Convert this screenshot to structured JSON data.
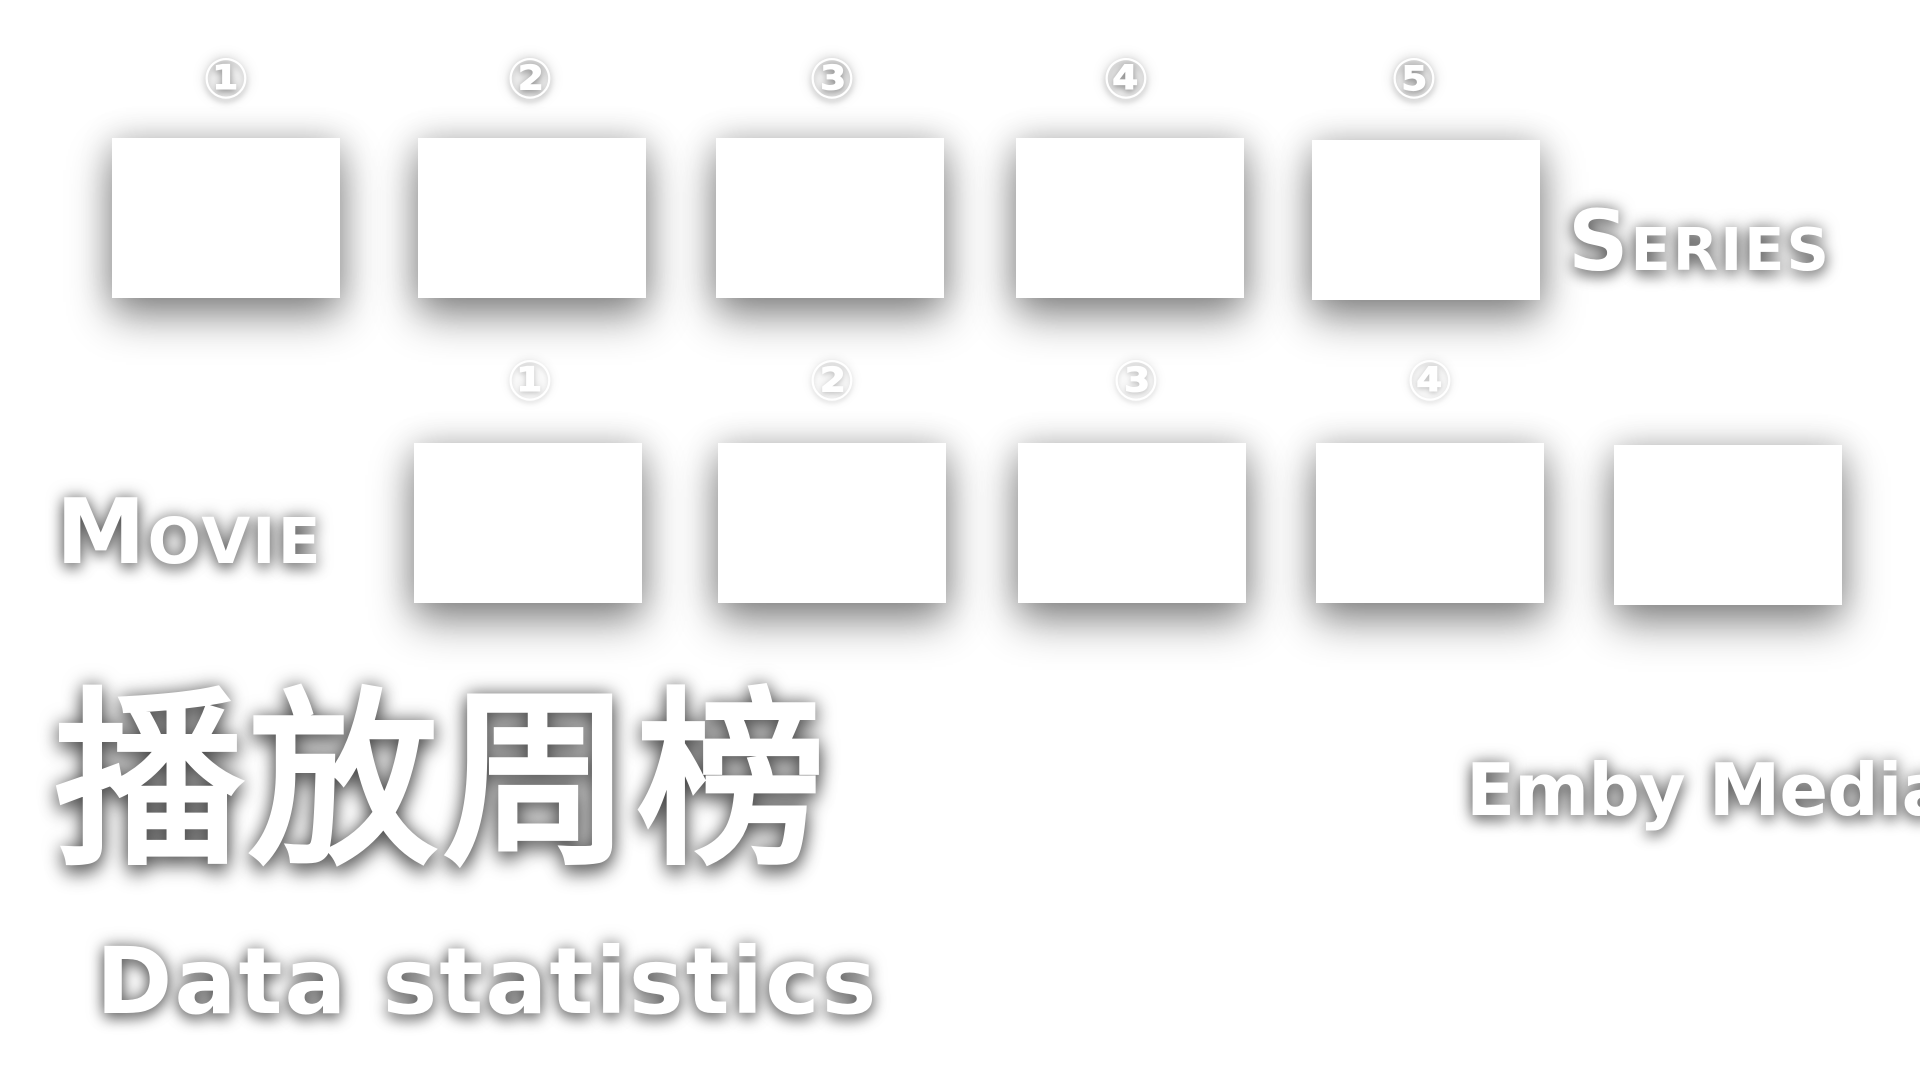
{
  "series": {
    "label": "Series",
    "ranks": [
      "①",
      "②",
      "③",
      "④",
      "⑤"
    ]
  },
  "movie": {
    "label": "Movie",
    "ranks": [
      "①",
      "②",
      "③",
      "④"
    ]
  },
  "title": {
    "main": "播放周榜",
    "subtitle": "Data statistics"
  },
  "brand": {
    "name": "Emby Media"
  }
}
